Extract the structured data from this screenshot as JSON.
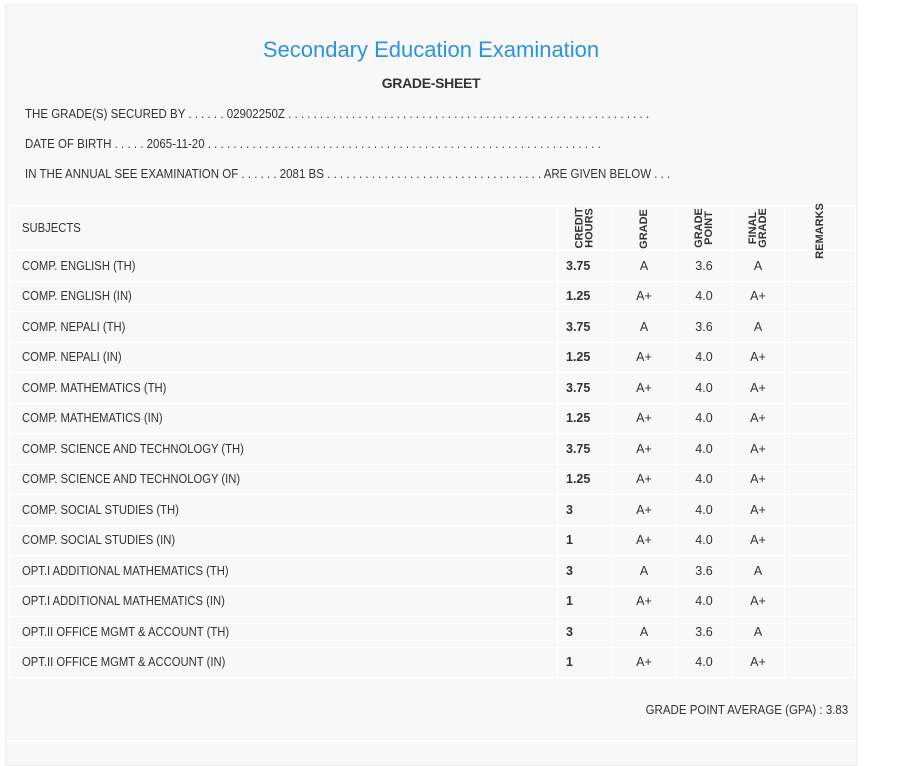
{
  "title": "Secondary Education Examination",
  "subtitle": "GRADE-SHEET",
  "lines": {
    "secured_by": "THE GRADE(S) SECURED BY . . . . . . 02902250Z . . . . . . . . . . . . . . . . . . . . . . . . . . . . . . . . . . . . . . . . . . . . . . . . . . . . . . . . .",
    "dob": "DATE OF BIRTH . . . . . 2065-11-20 . . . . . . . . . . . . . . . . . . . . . . . . . . . . . . . . . . . . . . . . . . . . . . . . . . . . . . . . . . . . . .",
    "exam": "IN THE ANNUAL SEE EXAMINATION OF . . . . . . 2081 BS . . . . . . . . . . . . . . . . . . . . . . . . . . . . . . . . . . ARE GIVEN BELOW . . ."
  },
  "headers": {
    "subjects": "SUBJECTS",
    "credit_1": "CREDIT",
    "credit_2": "HOURS",
    "grade": "GRADE",
    "gp_1": "GRADE",
    "gp_2": "POINT",
    "fg_1": "FINAL",
    "fg_2": "GRADE",
    "remarks": "REMARKS"
  },
  "rows": [
    {
      "subject": "COMP. ENGLISH (TH)",
      "credit": "3.75",
      "grade": "A",
      "gp": "3.6",
      "final": "A"
    },
    {
      "subject": "COMP. ENGLISH (IN)",
      "credit": "1.25",
      "grade": "A+",
      "gp": "4.0",
      "final": "A+"
    },
    {
      "subject": "COMP. NEPALI (TH)",
      "credit": "3.75",
      "grade": "A",
      "gp": "3.6",
      "final": "A"
    },
    {
      "subject": "COMP. NEPALI (IN)",
      "credit": "1.25",
      "grade": "A+",
      "gp": "4.0",
      "final": "A+"
    },
    {
      "subject": "COMP. MATHEMATICS (TH)",
      "credit": "3.75",
      "grade": "A+",
      "gp": "4.0",
      "final": "A+"
    },
    {
      "subject": "COMP. MATHEMATICS (IN)",
      "credit": "1.25",
      "grade": "A+",
      "gp": "4.0",
      "final": "A+"
    },
    {
      "subject": "COMP. SCIENCE AND TECHNOLOGY (TH)",
      "credit": "3.75",
      "grade": "A+",
      "gp": "4.0",
      "final": "A+"
    },
    {
      "subject": "COMP. SCIENCE AND TECHNOLOGY (IN)",
      "credit": "1.25",
      "grade": "A+",
      "gp": "4.0",
      "final": "A+"
    },
    {
      "subject": "COMP. SOCIAL STUDIES (TH)",
      "credit": "3",
      "grade": "A+",
      "gp": "4.0",
      "final": "A+"
    },
    {
      "subject": "COMP. SOCIAL STUDIES (IN)",
      "credit": "1",
      "grade": "A+",
      "gp": "4.0",
      "final": "A+"
    },
    {
      "subject": "OPT.I ADDITIONAL MATHEMATICS (TH)",
      "credit": "3",
      "grade": "A",
      "gp": "3.6",
      "final": "A"
    },
    {
      "subject": "OPT.I ADDITIONAL MATHEMATICS (IN)",
      "credit": "1",
      "grade": "A+",
      "gp": "4.0",
      "final": "A+"
    },
    {
      "subject": "OPT.II OFFICE MGMT & ACCOUNT (TH)",
      "credit": "3",
      "grade": "A",
      "gp": "3.6",
      "final": "A"
    },
    {
      "subject": "OPT.II OFFICE MGMT & ACCOUNT (IN)",
      "credit": "1",
      "grade": "A+",
      "gp": "4.0",
      "final": "A+"
    }
  ],
  "gpa": "GRADE POINT AVERAGE (GPA) : 3.83"
}
